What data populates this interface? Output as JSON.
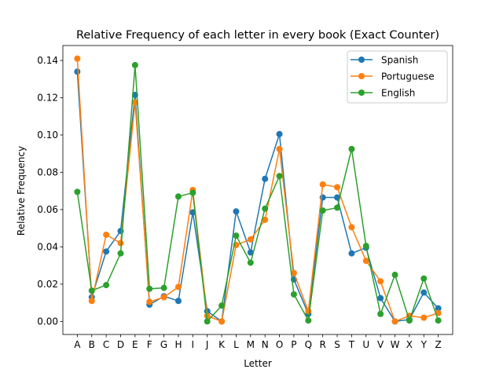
{
  "chart_data": {
    "type": "line",
    "title": "Relative Frequency of each letter in every book (Exact Counter)",
    "xlabel": "Letter",
    "ylabel": "Relative Frequency",
    "categories": [
      "A",
      "B",
      "C",
      "D",
      "E",
      "F",
      "G",
      "H",
      "I",
      "J",
      "K",
      "L",
      "M",
      "N",
      "O",
      "P",
      "Q",
      "R",
      "S",
      "T",
      "U",
      "V",
      "W",
      "X",
      "Y",
      "Z"
    ],
    "ylim": [
      -0.007,
      0.148
    ],
    "yticks": [
      "0.00",
      "0.02",
      "0.04",
      "0.06",
      "0.08",
      "0.10",
      "0.12",
      "0.14"
    ],
    "ytick_values": [
      0,
      0.02,
      0.04,
      0.06,
      0.08,
      0.1,
      0.12,
      0.14
    ],
    "grid": false,
    "legend_position": "top-right",
    "series": [
      {
        "name": "Spanish",
        "color": "#1f77b4",
        "values": [
          0.134,
          0.013,
          0.0375,
          0.0485,
          0.1215,
          0.009,
          0.0135,
          0.011,
          0.0585,
          0.0055,
          0.0,
          0.059,
          0.037,
          0.0765,
          0.1005,
          0.0225,
          0.004,
          0.0665,
          0.0665,
          0.0365,
          0.0395,
          0.0125,
          0.0,
          0.001,
          0.0155,
          0.007
        ]
      },
      {
        "name": "Portuguese",
        "color": "#ff7f0e",
        "values": [
          0.141,
          0.011,
          0.0465,
          0.042,
          0.1175,
          0.0105,
          0.013,
          0.0185,
          0.0705,
          0.003,
          0.0,
          0.041,
          0.044,
          0.0545,
          0.0925,
          0.026,
          0.0055,
          0.0735,
          0.072,
          0.0505,
          0.0325,
          0.0215,
          0.0,
          0.003,
          0.002,
          0.0045
        ]
      },
      {
        "name": "English",
        "color": "#2ca02c",
        "values": [
          0.0695,
          0.0165,
          0.0195,
          0.0365,
          0.1375,
          0.0175,
          0.018,
          0.067,
          0.069,
          0.0,
          0.0085,
          0.046,
          0.0315,
          0.0605,
          0.078,
          0.0145,
          0.0005,
          0.0595,
          0.061,
          0.0925,
          0.0405,
          0.004,
          0.025,
          0.0005,
          0.023,
          0.0005
        ]
      }
    ]
  }
}
